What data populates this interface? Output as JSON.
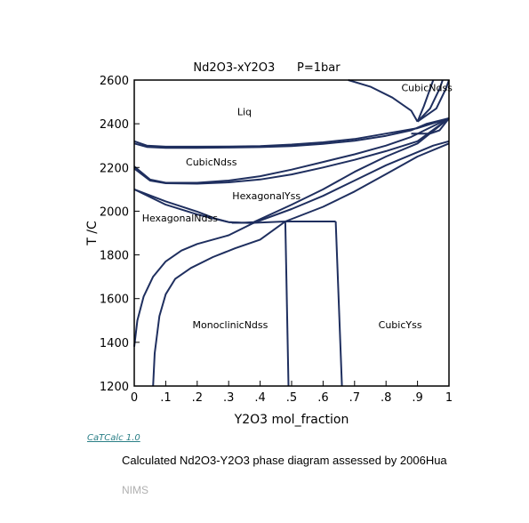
{
  "chart_data": {
    "type": "line",
    "title": "Nd2O3-xY2O3      P=1bar",
    "xlabel": "Y2O3 mol_fraction",
    "ylabel": "T /C",
    "xlim": [
      0,
      1
    ],
    "ylim": [
      1200,
      2600
    ],
    "x_ticks": [
      "0",
      ".1",
      ".2",
      ".3",
      ".4",
      ".5",
      ".6",
      ".7",
      ".8",
      ".9",
      "1"
    ],
    "y_ticks": [
      "1200",
      "1400",
      "1600",
      "1800",
      "2000",
      "2200",
      "2400",
      "2600"
    ],
    "grid": false,
    "region_labels": [
      {
        "text": "Liq",
        "x": 0.35,
        "y": 2440
      },
      {
        "text": "CubicNdss",
        "x": 0.93,
        "y": 2550
      },
      {
        "text": "CubicNdss",
        "x": 0.245,
        "y": 2210
      },
      {
        "text": "HexagonalYss",
        "x": 0.42,
        "y": 2055
      },
      {
        "text": "HexagonalNdss",
        "x": 0.145,
        "y": 1952
      },
      {
        "text": "MonoclinicNdss",
        "x": 0.305,
        "y": 1465
      },
      {
        "text": "CubicYss",
        "x": 0.845,
        "y": 1465
      }
    ],
    "series": [
      {
        "values": [
          [
            0,
            2320
          ],
          [
            0.04,
            2300
          ],
          [
            0.1,
            2295
          ],
          [
            0.2,
            2295
          ],
          [
            0.3,
            2296
          ],
          [
            0.4,
            2298
          ],
          [
            0.5,
            2305
          ],
          [
            0.6,
            2315
          ],
          [
            0.7,
            2330
          ],
          [
            0.8,
            2355
          ],
          [
            0.9,
            2380
          ],
          [
            1,
            2425
          ]
        ]
      },
      {
        "values": [
          [
            0,
            2310
          ],
          [
            0.04,
            2294
          ],
          [
            0.1,
            2290
          ],
          [
            0.2,
            2290
          ],
          [
            0.3,
            2291
          ],
          [
            0.4,
            2293
          ],
          [
            0.5,
            2298
          ],
          [
            0.6,
            2308
          ],
          [
            0.7,
            2322
          ],
          [
            0.8,
            2345
          ],
          [
            0.88,
            2370
          ],
          [
            0.93,
            2400
          ],
          [
            1,
            2425
          ]
        ]
      },
      {
        "values": [
          [
            0,
            2205
          ],
          [
            0.05,
            2145
          ],
          [
            0.1,
            2130
          ],
          [
            0.2,
            2130
          ],
          [
            0.3,
            2140
          ],
          [
            0.4,
            2160
          ],
          [
            0.5,
            2190
          ],
          [
            0.6,
            2225
          ],
          [
            0.7,
            2260
          ],
          [
            0.8,
            2300
          ],
          [
            0.88,
            2340
          ],
          [
            1,
            2425
          ]
        ]
      },
      {
        "values": [
          [
            0,
            2195
          ],
          [
            0.05,
            2140
          ],
          [
            0.1,
            2128
          ],
          [
            0.2,
            2126
          ],
          [
            0.3,
            2132
          ],
          [
            0.4,
            2145
          ],
          [
            0.5,
            2168
          ],
          [
            0.6,
            2200
          ],
          [
            0.7,
            2235
          ],
          [
            0.8,
            2275
          ],
          [
            0.9,
            2320
          ],
          [
            1,
            2425
          ]
        ]
      },
      {
        "values": [
          [
            0,
            2100
          ],
          [
            0.1,
            2045
          ],
          [
            0.2,
            1998
          ],
          [
            0.26,
            1965
          ],
          [
            0.3,
            1950
          ],
          [
            0.34,
            1947
          ],
          [
            0.38,
            1950
          ],
          [
            0.5,
            2030
          ],
          [
            0.6,
            2100
          ],
          [
            0.7,
            2180
          ],
          [
            0.8,
            2250
          ],
          [
            0.9,
            2310
          ],
          [
            1,
            2425
          ]
        ]
      },
      {
        "values": [
          [
            0,
            2100
          ],
          [
            0.1,
            2030
          ],
          [
            0.2,
            1985
          ],
          [
            0.3,
            1950
          ],
          [
            0.38,
            1945
          ]
        ]
      },
      {
        "values": [
          [
            0.31,
            1947
          ],
          [
            0.38,
            1947
          ]
        ]
      },
      {
        "values": [
          [
            0.38,
            1947
          ],
          [
            0.48,
            1953
          ]
        ]
      },
      {
        "values": [
          [
            0.48,
            1953
          ],
          [
            0.64,
            1953
          ]
        ]
      },
      {
        "values": [
          [
            0.48,
            1953
          ],
          [
            0.49,
            1200
          ]
        ]
      },
      {
        "values": [
          [
            0.64,
            1953
          ],
          [
            0.66,
            1200
          ]
        ]
      },
      {
        "values": [
          [
            0,
            1380
          ],
          [
            0.01,
            1500
          ],
          [
            0.03,
            1610
          ],
          [
            0.06,
            1700
          ],
          [
            0.1,
            1770
          ],
          [
            0.15,
            1820
          ],
          [
            0.2,
            1850
          ],
          [
            0.3,
            1890
          ],
          [
            0.38,
            1947
          ],
          [
            0.5,
            2010
          ],
          [
            0.6,
            2070
          ],
          [
            0.7,
            2140
          ],
          [
            0.8,
            2210
          ],
          [
            0.9,
            2270
          ],
          [
            0.95,
            2300
          ],
          [
            1,
            2320
          ]
        ]
      },
      {
        "values": [
          [
            0.06,
            1200
          ],
          [
            0.065,
            1350
          ],
          [
            0.08,
            1520
          ],
          [
            0.1,
            1620
          ],
          [
            0.13,
            1690
          ],
          [
            0.18,
            1740
          ],
          [
            0.25,
            1790
          ],
          [
            0.32,
            1830
          ],
          [
            0.4,
            1870
          ],
          [
            0.48,
            1953
          ],
          [
            0.6,
            2020
          ],
          [
            0.7,
            2090
          ],
          [
            0.8,
            2170
          ],
          [
            0.9,
            2250
          ],
          [
            1,
            2310
          ]
        ]
      },
      {
        "values": [
          [
            0.68,
            2600
          ],
          [
            0.75,
            2570
          ],
          [
            0.82,
            2520
          ],
          [
            0.88,
            2460
          ],
          [
            0.9,
            2410
          ]
        ]
      },
      {
        "values": [
          [
            0.9,
            2410
          ],
          [
            0.92,
            2480
          ],
          [
            0.94,
            2560
          ],
          [
            0.95,
            2600
          ]
        ]
      },
      {
        "values": [
          [
            0.9,
            2410
          ],
          [
            0.94,
            2470
          ],
          [
            0.97,
            2560
          ],
          [
            0.98,
            2600
          ]
        ]
      },
      {
        "values": [
          [
            0.9,
            2410
          ],
          [
            0.96,
            2470
          ],
          [
            0.99,
            2560
          ],
          [
            1,
            2600
          ]
        ]
      },
      {
        "values": [
          [
            0.88,
            2355
          ],
          [
            0.94,
            2355
          ]
        ]
      },
      {
        "values": [
          [
            0.94,
            2355
          ],
          [
            0.97,
            2370
          ],
          [
            1,
            2425
          ]
        ]
      }
    ]
  },
  "footer": {
    "brand": "CaTCalc 1.0",
    "caption": "Calculated Nd2O3-Y2O3 phase diagram assessed by 2006Hua",
    "org": "NIMS"
  },
  "colors": {
    "curve": "#1f2f5f",
    "axis": "#000000",
    "brand": "#2a7f86"
  }
}
